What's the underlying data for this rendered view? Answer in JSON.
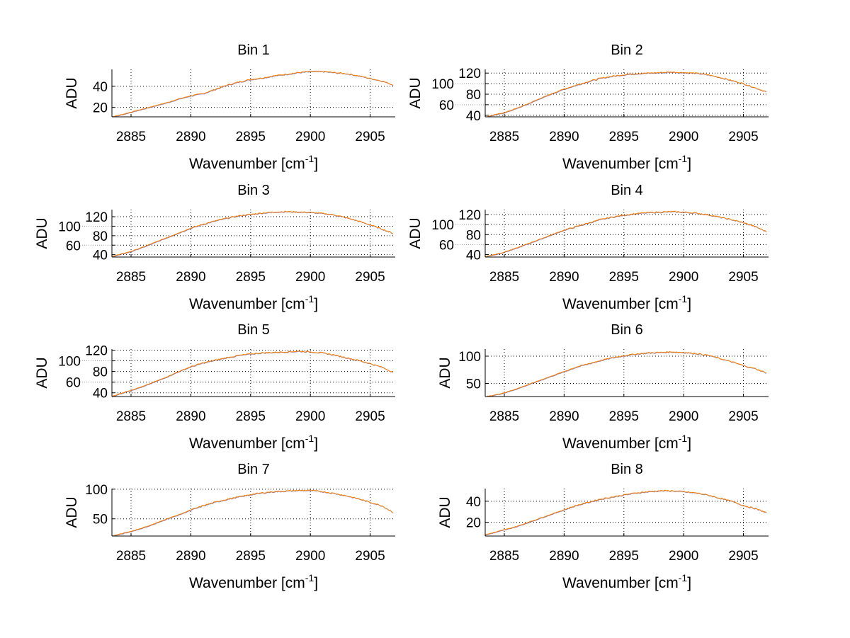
{
  "chart_data": [
    {
      "type": "line",
      "title": "Bin 1",
      "xlabel": "Wavenumber [cm",
      "xlabel_sup": "-1",
      "xlabel_end": "]",
      "ylabel": "ADU",
      "xlim": [
        2883.4,
        2907.1
      ],
      "ylim": [
        11,
        56
      ],
      "xticks": [
        2885,
        2890,
        2895,
        2900,
        2905
      ],
      "yticks": [
        20,
        40
      ],
      "grid": true,
      "series": [
        {
          "name": "spectrum",
          "color": "#ff8000",
          "x_start": 2883,
          "x_step": 1,
          "values": [
            10,
            12.5,
            15.5,
            18.5,
            21.5,
            24.5,
            28,
            31,
            33,
            37,
            41,
            44,
            46.5,
            48,
            50,
            51.5,
            53,
            54,
            54,
            53,
            52,
            50,
            47.5,
            45,
            41
          ]
        }
      ]
    },
    {
      "type": "line",
      "title": "Bin 2",
      "xlabel": "Wavenumber [cm",
      "xlabel_sup": "-1",
      "xlabel_end": "]",
      "ylabel": "ADU",
      "xlim": [
        2883.4,
        2907.1
      ],
      "ylim": [
        37,
        127
      ],
      "xticks": [
        2885,
        2890,
        2895,
        2900,
        2905
      ],
      "yticks": [
        40,
        60,
        80,
        100,
        120
      ],
      "grid": true,
      "series": [
        {
          "name": "spectrum",
          "color": "#ff8000",
          "x_start": 2883,
          "x_step": 1,
          "values": [
            34,
            40,
            45,
            53,
            62,
            72,
            81,
            90,
            97,
            104,
            110,
            114,
            117,
            119,
            120,
            121,
            122,
            121,
            120,
            117,
            112,
            106,
            100,
            92,
            84
          ]
        }
      ]
    },
    {
      "type": "line",
      "title": "Bin 3",
      "xlabel": "Wavenumber [cm",
      "xlabel_sup": "-1",
      "xlabel_end": "]",
      "ylabel": "ADU",
      "xlim": [
        2883.4,
        2907.1
      ],
      "ylim": [
        35,
        135
      ],
      "xticks": [
        2885,
        2890,
        2895,
        2900,
        2905
      ],
      "yticks": [
        40,
        60,
        80,
        100,
        120
      ],
      "grid": true,
      "series": [
        {
          "name": "spectrum",
          "color": "#ff8000",
          "x_start": 2883,
          "x_step": 1,
          "values": [
            34,
            40,
            47,
            56,
            66,
            76,
            86,
            96,
            104,
            111,
            117,
            122,
            125,
            128,
            130,
            131,
            130,
            129,
            127,
            124,
            118,
            111,
            103,
            94,
            84
          ]
        }
      ]
    },
    {
      "type": "line",
      "title": "Bin 4",
      "xlabel": "Wavenumber [cm",
      "xlabel_sup": "-1",
      "xlabel_end": "]",
      "ylabel": "ADU",
      "xlim": [
        2883.4,
        2907.1
      ],
      "ylim": [
        35,
        130
      ],
      "xticks": [
        2885,
        2890,
        2895,
        2900,
        2905
      ],
      "yticks": [
        40,
        60,
        80,
        100,
        120
      ],
      "grid": true,
      "series": [
        {
          "name": "spectrum",
          "color": "#ff8000",
          "x_start": 2883,
          "x_step": 1,
          "values": [
            34,
            39,
            45,
            53,
            62,
            71,
            80,
            89,
            96,
            103,
            110,
            115,
            119,
            122,
            124,
            125,
            126,
            125,
            123,
            120,
            115,
            110,
            104,
            96,
            85
          ]
        }
      ]
    },
    {
      "type": "line",
      "title": "Bin 5",
      "xlabel": "Wavenumber [cm",
      "xlabel_sup": "-1",
      "xlabel_end": "]",
      "ylabel": "ADU",
      "xlim": [
        2883.4,
        2907.1
      ],
      "ylim": [
        33,
        122
      ],
      "xticks": [
        2885,
        2890,
        2895,
        2900,
        2905
      ],
      "yticks": [
        40,
        60,
        80,
        100,
        120
      ],
      "grid": true,
      "series": [
        {
          "name": "spectrum",
          "color": "#ff8000",
          "x_start": 2883,
          "x_step": 1,
          "values": [
            30,
            38,
            45,
            52,
            61,
            70,
            80,
            89,
            96,
            101,
            106,
            110,
            113,
            115,
            116,
            117,
            118,
            117,
            115,
            111,
            106,
            101,
            95,
            88,
            78
          ]
        }
      ]
    },
    {
      "type": "line",
      "title": "Bin 6",
      "xlabel": "Wavenumber [cm",
      "xlabel_sup": "-1",
      "xlabel_end": "]",
      "ylabel": "ADU",
      "xlim": [
        2883.4,
        2907.1
      ],
      "ylim": [
        26,
        113
      ],
      "xticks": [
        2885,
        2890,
        2895,
        2900,
        2905
      ],
      "yticks": [
        50,
        100
      ],
      "grid": true,
      "series": [
        {
          "name": "spectrum",
          "color": "#ff8000",
          "x_start": 2883,
          "x_step": 1,
          "values": [
            24,
            28,
            33,
            40,
            48,
            56,
            64,
            72,
            80,
            86,
            92,
            97,
            101,
            104,
            106,
            107,
            108,
            107,
            105,
            102,
            96,
            90,
            83,
            77,
            69
          ]
        }
      ]
    },
    {
      "type": "line",
      "title": "Bin 7",
      "xlabel": "Wavenumber [cm",
      "xlabel_sup": "-1",
      "xlabel_end": "]",
      "ylabel": "ADU",
      "xlim": [
        2883.4,
        2907.1
      ],
      "ylim": [
        21,
        101
      ],
      "xticks": [
        2885,
        2890,
        2895,
        2900,
        2905
      ],
      "yticks": [
        50,
        100
      ],
      "grid": true,
      "series": [
        {
          "name": "spectrum",
          "color": "#ff8000",
          "x_start": 2883,
          "x_step": 1,
          "values": [
            19,
            24,
            29,
            35,
            42,
            50,
            57,
            65,
            72,
            78,
            83,
            87,
            91,
            94,
            96,
            97,
            98,
            98,
            96,
            93,
            89,
            84,
            78,
            72,
            60
          ]
        }
      ]
    },
    {
      "type": "line",
      "title": "Bin 8",
      "xlabel": "Wavenumber [cm",
      "xlabel_sup": "-1",
      "xlabel_end": "]",
      "ylabel": "ADU",
      "xlim": [
        2883.4,
        2907.1
      ],
      "ylim": [
        7,
        52
      ],
      "xticks": [
        2885,
        2890,
        2895,
        2900,
        2905
      ],
      "yticks": [
        20,
        40
      ],
      "grid": true,
      "series": [
        {
          "name": "spectrum",
          "color": "#ff8000",
          "x_start": 2883,
          "x_step": 1,
          "values": [
            7,
            10,
            13,
            16,
            20,
            24,
            28,
            32,
            36,
            39,
            42,
            44,
            46,
            48,
            49,
            50,
            50,
            49,
            48,
            46,
            43,
            40,
            36,
            33,
            29
          ]
        }
      ]
    }
  ]
}
